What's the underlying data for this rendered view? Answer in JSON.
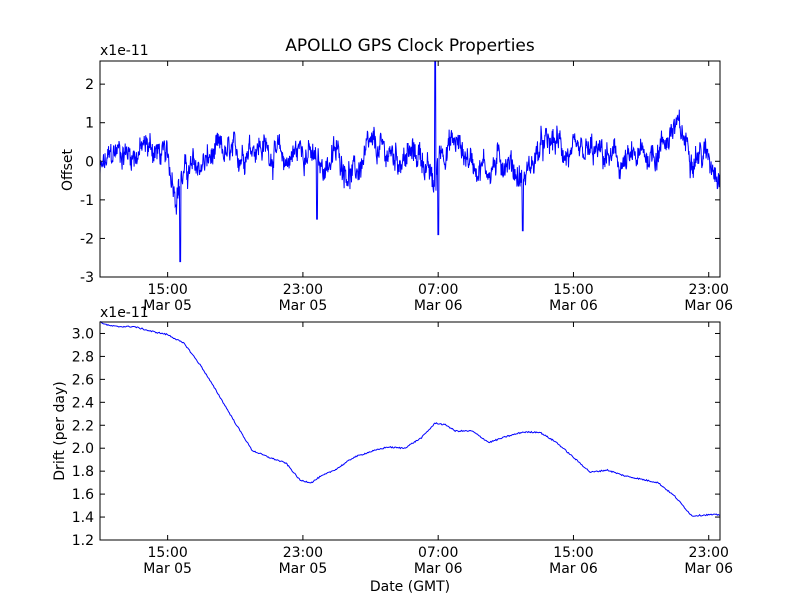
{
  "title": "APOLLO GPS Clock Properties",
  "chart_data": [
    {
      "type": "line",
      "title": "APOLLO GPS Clock Properties",
      "ylabel": "Offset",
      "xlabel": "",
      "y_multiplier": "x1e-11",
      "ylim": [
        -3,
        2.6
      ],
      "yticks": [
        -3,
        -2,
        -1,
        0,
        1,
        2
      ],
      "xlim": [
        "2014-03-05 11:00",
        "2014-03-06 23:40"
      ],
      "xticks": [
        {
          "time": "2014-03-05 15:00",
          "label": "15:00",
          "date": "Mar 05"
        },
        {
          "time": "2014-03-05 23:00",
          "label": "23:00",
          "date": "Mar 05"
        },
        {
          "time": "2014-03-06 07:00",
          "label": "07:00",
          "date": "Mar 06"
        },
        {
          "time": "2014-03-06 15:00",
          "label": "15:00",
          "date": "Mar 06"
        },
        {
          "time": "2014-03-06 23:00",
          "label": "23:00",
          "date": "Mar 06"
        }
      ],
      "grid": false,
      "color": "#0000ff",
      "series": [
        {
          "x": [
            "2014-03-05 11:00",
            "2014-03-05 12:00",
            "2014-03-05 13:00",
            "2014-03-05 14:00",
            "2014-03-05 15:00",
            "2014-03-05 15:30",
            "2014-03-05 16:00",
            "2014-03-05 17:00",
            "2014-03-05 18:00",
            "2014-03-05 19:00",
            "2014-03-05 20:00",
            "2014-03-05 21:00",
            "2014-03-05 22:00",
            "2014-03-05 23:00",
            "2014-03-06 00:00",
            "2014-03-06 01:00",
            "2014-03-06 02:00",
            "2014-03-06 03:00",
            "2014-03-06 04:00",
            "2014-03-06 05:00",
            "2014-03-06 06:00",
            "2014-03-06 06:50",
            "2014-03-06 07:00",
            "2014-03-06 08:00",
            "2014-03-06 09:00",
            "2014-03-06 10:00",
            "2014-03-06 11:00",
            "2014-03-06 12:00",
            "2014-03-06 13:00",
            "2014-03-06 14:00",
            "2014-03-06 15:00",
            "2014-03-06 16:00",
            "2014-03-06 17:00",
            "2014-03-06 18:00",
            "2014-03-06 19:00",
            "2014-03-06 20:00",
            "2014-03-06 21:00",
            "2014-03-06 22:00",
            "2014-03-06 23:00",
            "2014-03-06 23:40"
          ],
          "values": [
            -0.3,
            0.3,
            0.2,
            0.4,
            0.0,
            -0.7,
            -0.3,
            -0.1,
            0.2,
            0.1,
            0.5,
            0.3,
            0.0,
            0.4,
            -0.2,
            0.2,
            -0.4,
            0.3,
            0.2,
            0.1,
            0.2,
            -0.8,
            0.3,
            0.5,
            0.0,
            -0.2,
            0.1,
            -0.5,
            0.3,
            0.5,
            0.0,
            0.2,
            0.1,
            -0.1,
            0.1,
            0.3,
            0.9,
            0.3,
            0.1,
            -0.2
          ],
          "annotations": [
            {
              "x": "2014-03-05 15:45",
              "y": -2.6
            },
            {
              "x": "2014-03-06 06:50",
              "y": 2.6
            },
            {
              "x": "2014-03-06 07:00",
              "y": -1.9
            },
            {
              "x": "2014-03-06 12:00",
              "y": -1.8
            },
            {
              "x": "2014-03-05 23:50",
              "y": -1.5
            }
          ]
        }
      ]
    },
    {
      "type": "line",
      "ylabel": "Drift (per day)",
      "xlabel": "Date (GMT)",
      "y_multiplier": "x1e-11",
      "ylim": [
        1.2,
        3.1
      ],
      "yticks": [
        1.2,
        1.4,
        1.6,
        1.8,
        2.0,
        2.2,
        2.4,
        2.6,
        2.8,
        3.0
      ],
      "ytick_labels": [
        "1.2",
        "1.4",
        "1.6",
        "1.8",
        "2.0",
        "2.2",
        "2.4",
        "2.6",
        "2.8",
        "3.0"
      ],
      "xlim": [
        "2014-03-05 11:00",
        "2014-03-06 23:40"
      ],
      "xticks": [
        {
          "time": "2014-03-05 15:00",
          "label": "15:00",
          "date": "Mar 05"
        },
        {
          "time": "2014-03-05 23:00",
          "label": "23:00",
          "date": "Mar 05"
        },
        {
          "time": "2014-03-06 07:00",
          "label": "07:00",
          "date": "Mar 06"
        },
        {
          "time": "2014-03-06 15:00",
          "label": "15:00",
          "date": "Mar 06"
        },
        {
          "time": "2014-03-06 23:00",
          "label": "23:00",
          "date": "Mar 06"
        }
      ],
      "grid": false,
      "color": "#0000ff",
      "series": [
        {
          "x": [
            "2014-03-05 11:00",
            "2014-03-05 11:30",
            "2014-03-05 12:00",
            "2014-03-05 13:00",
            "2014-03-05 14:00",
            "2014-03-05 15:00",
            "2014-03-05 16:00",
            "2014-03-05 17:00",
            "2014-03-05 18:00",
            "2014-03-05 19:00",
            "2014-03-05 20:00",
            "2014-03-05 21:00",
            "2014-03-05 22:00",
            "2014-03-05 22:50",
            "2014-03-05 23:30",
            "2014-03-06 00:00",
            "2014-03-06 01:00",
            "2014-03-06 02:00",
            "2014-03-06 03:00",
            "2014-03-06 04:00",
            "2014-03-06 05:00",
            "2014-03-06 06:00",
            "2014-03-06 06:50",
            "2014-03-06 07:30",
            "2014-03-06 08:00",
            "2014-03-06 09:00",
            "2014-03-06 10:00",
            "2014-03-06 11:00",
            "2014-03-06 12:00",
            "2014-03-06 13:00",
            "2014-03-06 14:00",
            "2014-03-06 15:00",
            "2014-03-06 16:00",
            "2014-03-06 17:00",
            "2014-03-06 18:00",
            "2014-03-06 19:00",
            "2014-03-06 20:00",
            "2014-03-06 21:00",
            "2014-03-06 22:00",
            "2014-03-06 23:00",
            "2014-03-06 23:40"
          ],
          "values": [
            3.1,
            3.07,
            3.06,
            3.06,
            3.02,
            2.99,
            2.91,
            2.71,
            2.47,
            2.22,
            1.98,
            1.92,
            1.87,
            1.72,
            1.7,
            1.75,
            1.82,
            1.92,
            1.97,
            2.01,
            2.0,
            2.09,
            2.22,
            2.2,
            2.15,
            2.15,
            2.05,
            2.1,
            2.14,
            2.14,
            2.05,
            1.92,
            1.79,
            1.81,
            1.76,
            1.73,
            1.7,
            1.58,
            1.41,
            1.42,
            1.42
          ]
        }
      ]
    }
  ]
}
